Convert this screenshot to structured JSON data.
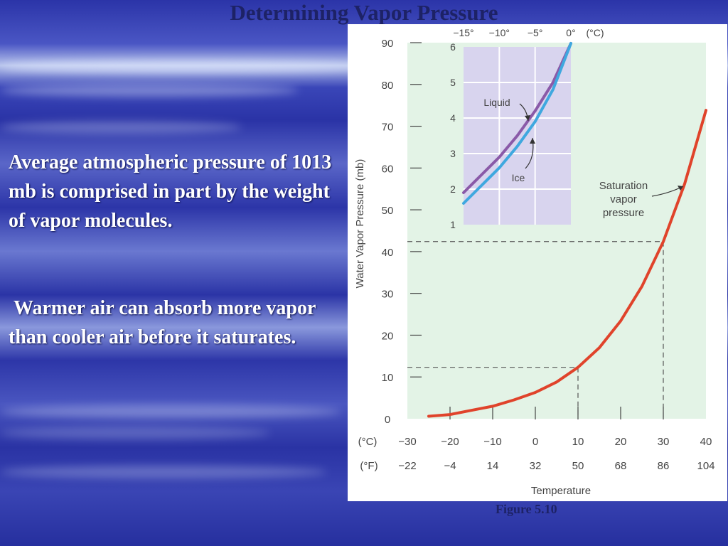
{
  "slide": {
    "title": "Determining Vapor Pressure",
    "paragraph_1": "Average atmospheric pressure of 1013 mb is comprised in part by the weight of vapor molecules.",
    "paragraph_2": " Warmer air can absorb more vapor than cooler air before it saturates.",
    "caption": "Figure 5.10"
  },
  "chart_data": [
    {
      "type": "line",
      "ylabel": "Water Vapor Pressure (mb)",
      "xlabel": "Temperature",
      "x_axis_c_label": "(°C)",
      "x_axis_f_label": "(°F)",
      "x_ticks_c": [
        "−30",
        "−20",
        "−10",
        "0",
        "10",
        "20",
        "30",
        "40"
      ],
      "x_ticks_f": [
        "−22",
        "−4",
        "14",
        "32",
        "50",
        "68",
        "86",
        "104"
      ],
      "y_ticks": [
        "0",
        "10",
        "20",
        "30",
        "40",
        "50",
        "60",
        "70",
        "80",
        "90"
      ],
      "xlim": [
        -30,
        40
      ],
      "ylim": [
        0,
        90
      ],
      "annotation": "Saturation\nvapor\npressure",
      "series": [
        {
          "name": "Saturation vapor pressure",
          "color": "#e0432b",
          "x": [
            -25,
            -20,
            -15,
            -10,
            -5,
            0,
            5,
            10,
            15,
            20,
            25,
            30,
            35,
            40
          ],
          "y": [
            0.6,
            1.0,
            2.0,
            3.0,
            4.5,
            6.3,
            8.8,
            12.3,
            17.0,
            23.4,
            31.7,
            42.4,
            56.2,
            73.8
          ]
        }
      ],
      "reference_points": [
        {
          "x": 10,
          "y": 12.3
        },
        {
          "x": 30,
          "y": 42.4
        }
      ]
    },
    {
      "type": "line",
      "x_ticks": [
        "−15°",
        "−10°",
        "−5°",
        "0°"
      ],
      "x_unit_label": "(°C)",
      "y_ticks": [
        "1",
        "2",
        "3",
        "4",
        "5",
        "6"
      ],
      "xlim": [
        -15,
        0
      ],
      "ylim": [
        1,
        6
      ],
      "series": [
        {
          "name": "Liquid",
          "color": "#8a5aa8",
          "x": [
            -15,
            -12.5,
            -10,
            -7.5,
            -5,
            -2.5,
            0
          ],
          "y": [
            1.9,
            2.4,
            2.9,
            3.5,
            4.2,
            5.0,
            6.1
          ]
        },
        {
          "name": "Ice",
          "color": "#3fa8df",
          "x": [
            -15,
            -12.5,
            -10,
            -7.5,
            -5,
            -2.5,
            0
          ],
          "y": [
            1.6,
            2.1,
            2.6,
            3.2,
            3.9,
            4.8,
            6.1
          ]
        }
      ]
    }
  ]
}
